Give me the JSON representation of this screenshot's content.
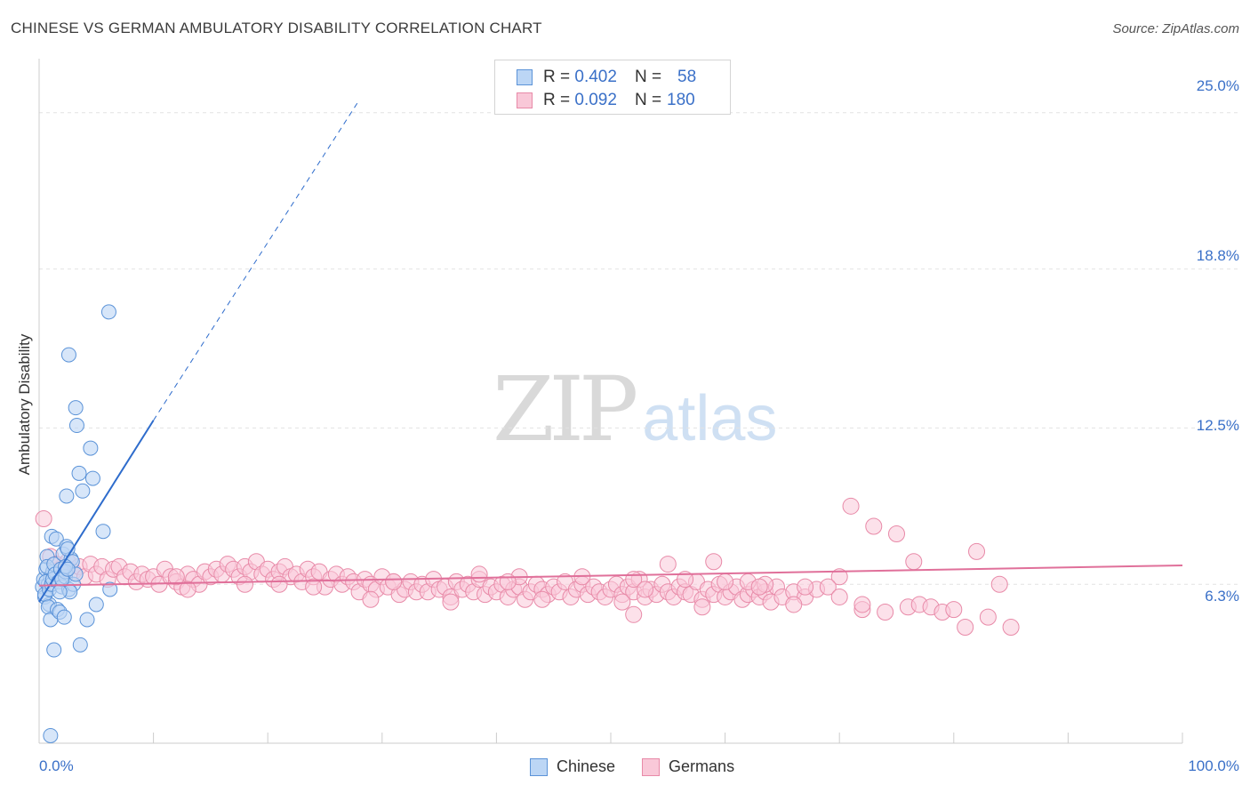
{
  "title": "CHINESE VS GERMAN AMBULATORY DISABILITY CORRELATION CHART",
  "source": "Source: ZipAtlas.com",
  "watermark": {
    "zip": "ZIP",
    "atlas": "atlas"
  },
  "colors": {
    "chinese_fill": "#bcd6f5",
    "chinese_stroke": "#5b93d8",
    "chinese_line": "#2e6ccc",
    "germans_fill": "#f9c8d8",
    "germans_stroke": "#e88aa8",
    "germans_line": "#e0709a",
    "tick_text": "#3a70c8",
    "grid": "#e2e2e2"
  },
  "stats": {
    "chinese": {
      "r_label": "R =",
      "r_value": "0.402",
      "n_label": "N =",
      "n_value": "58"
    },
    "germans": {
      "r_label": "R =",
      "r_value": "0.092",
      "n_label": "N =",
      "n_value": "180"
    }
  },
  "chart_data": {
    "type": "scatter",
    "title": "CHINESE VS GERMAN AMBULATORY DISABILITY CORRELATION CHART",
    "xlabel": "",
    "ylabel": "Ambulatory Disability",
    "xlim": [
      0,
      100
    ],
    "ylim": [
      0,
      27
    ],
    "x_tick_labels": [
      "0.0%",
      "100.0%"
    ],
    "y_ticks": [
      6.3,
      12.5,
      18.8,
      25.0
    ],
    "y_tick_labels": [
      "6.3%",
      "12.5%",
      "18.8%",
      "25.0%"
    ],
    "grid": true,
    "legend": "bottom-center",
    "series": [
      {
        "name": "Chinese",
        "trend": {
          "x": [
            0,
            10
          ],
          "y": [
            5.6,
            12.8
          ],
          "dashed_to": [
            28,
            25.5
          ]
        },
        "points": [
          [
            0.3,
            6.2
          ],
          [
            0.4,
            6.5
          ],
          [
            0.5,
            5.8
          ],
          [
            0.6,
            6.9
          ],
          [
            0.7,
            7.4
          ],
          [
            0.8,
            6.3
          ],
          [
            0.9,
            5.5
          ],
          [
            1.0,
            6.6
          ],
          [
            1.1,
            8.2
          ],
          [
            1.2,
            6.8
          ],
          [
            0.5,
            5.9
          ],
          [
            0.6,
            6.4
          ],
          [
            0.7,
            7.0
          ],
          [
            0.8,
            5.4
          ],
          [
            0.9,
            6.1
          ],
          [
            1.0,
            4.9
          ],
          [
            1.1,
            6.3
          ],
          [
            1.2,
            6.5
          ],
          [
            1.3,
            7.1
          ],
          [
            1.4,
            6.7
          ],
          [
            1.5,
            8.1
          ],
          [
            1.6,
            5.3
          ],
          [
            1.7,
            6.4
          ],
          [
            1.8,
            5.2
          ],
          [
            1.9,
            6.9
          ],
          [
            2.0,
            6.2
          ],
          [
            2.1,
            7.5
          ],
          [
            2.2,
            5.0
          ],
          [
            2.3,
            6.6
          ],
          [
            2.4,
            7.8
          ],
          [
            1.3,
            3.7
          ],
          [
            1.0,
            0.3
          ],
          [
            2.6,
            6.1
          ],
          [
            2.8,
            7.3
          ],
          [
            3.0,
            6.3
          ],
          [
            2.5,
            7.7
          ],
          [
            2.7,
            6.0
          ],
          [
            2.9,
            7.2
          ],
          [
            2.4,
            9.8
          ],
          [
            2.6,
            15.4
          ],
          [
            2.3,
            6.8
          ],
          [
            2.0,
            6.5
          ],
          [
            1.8,
            6.0
          ],
          [
            3.2,
            6.7
          ],
          [
            3.5,
            10.7
          ],
          [
            2.3,
            7.0
          ],
          [
            2.5,
            6.9
          ],
          [
            3.3,
            12.6
          ],
          [
            3.2,
            13.3
          ],
          [
            3.6,
            3.9
          ],
          [
            3.8,
            10.0
          ],
          [
            4.2,
            4.9
          ],
          [
            4.5,
            11.7
          ],
          [
            4.7,
            10.5
          ],
          [
            5.0,
            5.5
          ],
          [
            5.6,
            8.4
          ],
          [
            6.1,
            17.1
          ],
          [
            6.2,
            6.1
          ]
        ]
      },
      {
        "name": "Germans",
        "trend": {
          "x": [
            0,
            100
          ],
          "y": [
            6.25,
            7.05
          ]
        },
        "points": [
          [
            0.4,
            8.9
          ],
          [
            1.0,
            7.4
          ],
          [
            1.5,
            7.1
          ],
          [
            2.0,
            6.9
          ],
          [
            2.5,
            7.2
          ],
          [
            3.0,
            6.8
          ],
          [
            3.5,
            7.0
          ],
          [
            4.0,
            6.6
          ],
          [
            4.5,
            7.1
          ],
          [
            5.0,
            6.7
          ],
          [
            5.5,
            7.0
          ],
          [
            6.0,
            6.5
          ],
          [
            6.5,
            6.9
          ],
          [
            7.0,
            7.0
          ],
          [
            7.5,
            6.6
          ],
          [
            8.0,
            6.8
          ],
          [
            8.5,
            6.4
          ],
          [
            9.0,
            6.7
          ],
          [
            9.5,
            6.5
          ],
          [
            10.0,
            6.6
          ],
          [
            10.5,
            6.3
          ],
          [
            11.0,
            6.9
          ],
          [
            11.5,
            6.6
          ],
          [
            12.0,
            6.4
          ],
          [
            12.5,
            6.2
          ],
          [
            13.0,
            6.7
          ],
          [
            13.5,
            6.5
          ],
          [
            14.0,
            6.3
          ],
          [
            14.5,
            6.8
          ],
          [
            15.0,
            6.6
          ],
          [
            15.5,
            6.9
          ],
          [
            16.0,
            6.7
          ],
          [
            16.5,
            7.1
          ],
          [
            17.0,
            6.9
          ],
          [
            17.5,
            6.6
          ],
          [
            18.0,
            7.0
          ],
          [
            18.5,
            6.8
          ],
          [
            19.0,
            7.2
          ],
          [
            19.5,
            6.7
          ],
          [
            20.0,
            6.9
          ],
          [
            20.5,
            6.5
          ],
          [
            21.0,
            6.8
          ],
          [
            21.5,
            7.0
          ],
          [
            22.0,
            6.6
          ],
          [
            22.5,
            6.7
          ],
          [
            23.0,
            6.4
          ],
          [
            23.5,
            6.9
          ],
          [
            24.0,
            6.6
          ],
          [
            24.5,
            6.8
          ],
          [
            25.0,
            6.2
          ],
          [
            25.5,
            6.5
          ],
          [
            26.0,
            6.7
          ],
          [
            26.5,
            6.3
          ],
          [
            27.0,
            6.6
          ],
          [
            27.5,
            6.4
          ],
          [
            28.0,
            6.0
          ],
          [
            28.5,
            6.5
          ],
          [
            29.0,
            6.3
          ],
          [
            29.5,
            6.1
          ],
          [
            30.0,
            6.6
          ],
          [
            30.5,
            6.2
          ],
          [
            31.0,
            6.4
          ],
          [
            31.5,
            5.9
          ],
          [
            32.0,
            6.1
          ],
          [
            32.5,
            6.4
          ],
          [
            33.0,
            6.0
          ],
          [
            33.5,
            6.3
          ],
          [
            34.0,
            6.0
          ],
          [
            34.5,
            6.5
          ],
          [
            35.0,
            6.1
          ],
          [
            35.5,
            6.2
          ],
          [
            36.0,
            5.8
          ],
          [
            36.5,
            6.4
          ],
          [
            37.0,
            6.1
          ],
          [
            37.5,
            6.3
          ],
          [
            38.0,
            6.0
          ],
          [
            38.5,
            6.5
          ],
          [
            39.0,
            5.9
          ],
          [
            39.5,
            6.2
          ],
          [
            40.0,
            6.0
          ],
          [
            40.5,
            6.3
          ],
          [
            41.0,
            5.8
          ],
          [
            41.5,
            6.1
          ],
          [
            42.0,
            6.2
          ],
          [
            42.5,
            5.7
          ],
          [
            43.0,
            6.0
          ],
          [
            43.5,
            6.3
          ],
          [
            44.0,
            6.1
          ],
          [
            44.5,
            5.9
          ],
          [
            45.0,
            6.2
          ],
          [
            45.5,
            6.0
          ],
          [
            46.0,
            6.4
          ],
          [
            46.5,
            5.8
          ],
          [
            47.0,
            6.1
          ],
          [
            47.5,
            6.3
          ],
          [
            48.0,
            5.9
          ],
          [
            48.5,
            6.2
          ],
          [
            49.0,
            6.0
          ],
          [
            49.5,
            5.8
          ],
          [
            50.0,
            6.1
          ],
          [
            50.5,
            6.3
          ],
          [
            51.0,
            5.9
          ],
          [
            51.5,
            6.2
          ],
          [
            52.0,
            6.0
          ],
          [
            52.5,
            6.5
          ],
          [
            53.0,
            5.8
          ],
          [
            53.5,
            6.1
          ],
          [
            54.0,
            5.9
          ],
          [
            54.5,
            6.3
          ],
          [
            55.0,
            6.0
          ],
          [
            55.5,
            5.8
          ],
          [
            56.0,
            6.2
          ],
          [
            56.5,
            6.0
          ],
          [
            57.0,
            5.9
          ],
          [
            57.5,
            6.4
          ],
          [
            58.0,
            5.7
          ],
          [
            58.5,
            6.1
          ],
          [
            59.0,
            5.9
          ],
          [
            59.5,
            6.3
          ],
          [
            60.0,
            5.8
          ],
          [
            60.5,
            6.0
          ],
          [
            61.0,
            6.2
          ],
          [
            61.5,
            5.7
          ],
          [
            62.0,
            5.9
          ],
          [
            62.5,
            6.1
          ],
          [
            63.0,
            5.8
          ],
          [
            63.5,
            6.0
          ],
          [
            64.0,
            5.6
          ],
          [
            64.5,
            6.2
          ],
          [
            65.0,
            5.8
          ],
          [
            38.5,
            6.7
          ],
          [
            42.0,
            6.6
          ],
          [
            47.5,
            6.6
          ],
          [
            52.0,
            6.5
          ],
          [
            56.5,
            6.5
          ],
          [
            60.0,
            6.4
          ],
          [
            63.5,
            6.3
          ],
          [
            66.0,
            6.0
          ],
          [
            67.0,
            5.8
          ],
          [
            68.0,
            6.1
          ],
          [
            13.0,
            6.1
          ],
          [
            21.0,
            6.3
          ],
          [
            29.0,
            5.7
          ],
          [
            36.0,
            5.6
          ],
          [
            44.0,
            5.7
          ],
          [
            51.0,
            5.6
          ],
          [
            58.0,
            5.4
          ],
          [
            66.0,
            5.5
          ],
          [
            72.0,
            5.3
          ],
          [
            73.0,
            8.6
          ],
          [
            12.0,
            6.6
          ],
          [
            18.0,
            6.3
          ],
          [
            24.0,
            6.2
          ],
          [
            31.0,
            6.4
          ],
          [
            41.0,
            6.4
          ],
          [
            53.0,
            6.1
          ],
          [
            62.0,
            6.4
          ],
          [
            67.0,
            6.2
          ],
          [
            70.0,
            6.6
          ],
          [
            71.0,
            9.4
          ],
          [
            52.0,
            5.1
          ],
          [
            55.0,
            7.1
          ],
          [
            59.0,
            7.2
          ],
          [
            63.0,
            6.2
          ],
          [
            69.0,
            6.2
          ],
          [
            70.0,
            5.8
          ],
          [
            72.0,
            5.5
          ],
          [
            74.0,
            5.2
          ],
          [
            75.0,
            8.3
          ],
          [
            76.0,
            5.4
          ],
          [
            76.5,
            7.2
          ],
          [
            77.0,
            5.5
          ],
          [
            78.0,
            5.4
          ],
          [
            79.0,
            5.2
          ],
          [
            80.0,
            5.3
          ],
          [
            81.0,
            4.6
          ],
          [
            82.0,
            7.6
          ],
          [
            83.0,
            5.0
          ],
          [
            84.0,
            6.3
          ],
          [
            85.0,
            4.6
          ]
        ]
      }
    ]
  }
}
